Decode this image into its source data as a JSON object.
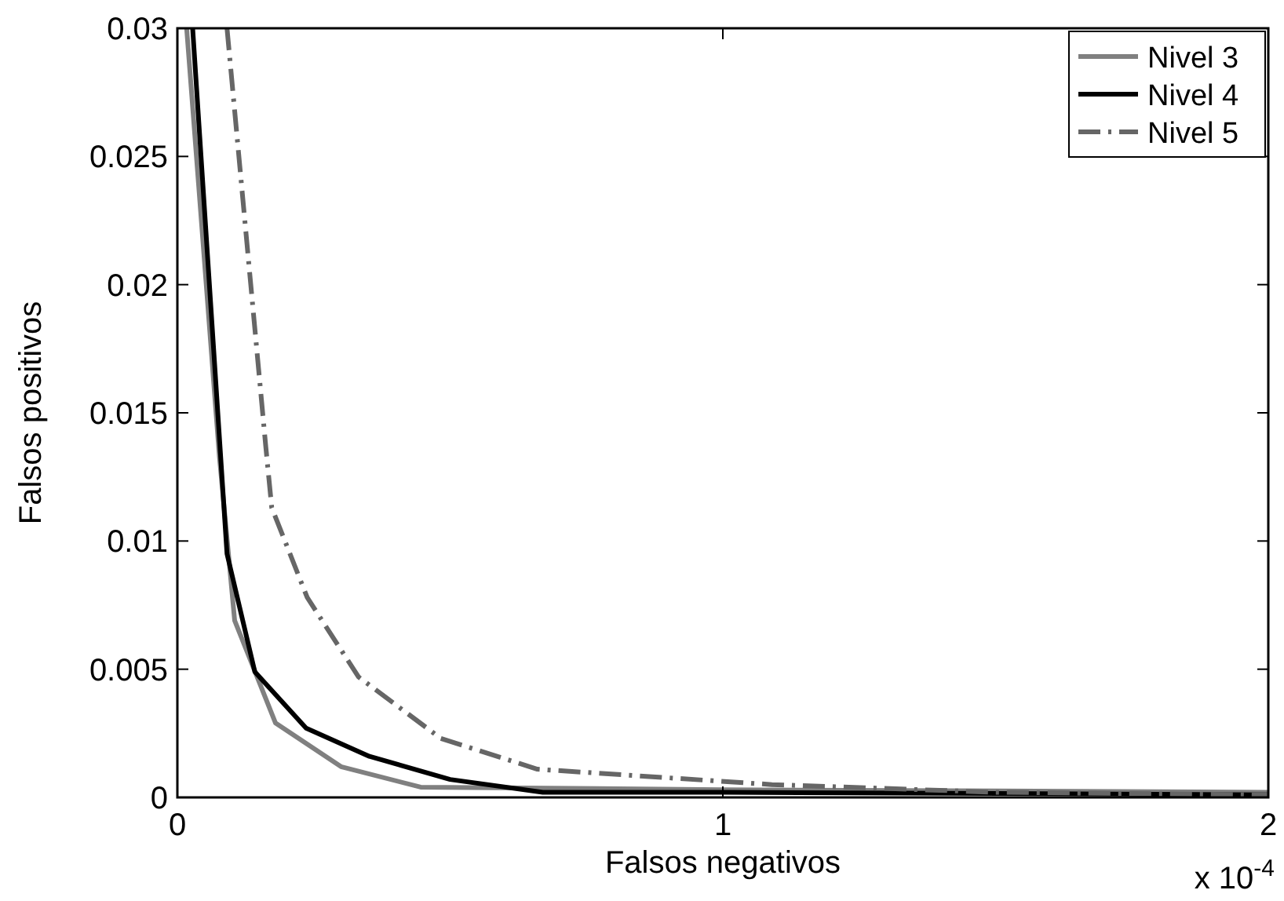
{
  "chart_data": {
    "type": "line",
    "xlabel": "Falsos negativos",
    "ylabel": "Falsos positivos",
    "xlim": [
      0,
      2
    ],
    "xticks": [
      0,
      1,
      2
    ],
    "ylim": [
      0,
      0.03
    ],
    "yticks": [
      0,
      0.005,
      0.01,
      0.015,
      0.02,
      0.025,
      0.03
    ],
    "annotations": [
      "x 10$^{-4}$"
    ],
    "legend": "top right",
    "grid": false,
    "marker": "none",
    "series": [
      {
        "name": "Nivel 3",
        "color": "#808080",
        "line_style": "solid",
        "x": [
          0.017,
          0.077,
          0.105,
          0.18,
          0.3,
          0.446,
          1.0,
          2.0
        ],
        "values": [
          0.03,
          0.0133,
          0.0069,
          0.0029,
          0.0012,
          0.0004,
          0.0003,
          0.0002
        ]
      },
      {
        "name": "Nivel 4",
        "color": "#000000",
        "line_style": "solid",
        "x": [
          0.028,
          0.091,
          0.142,
          0.236,
          0.352,
          0.5,
          0.67,
          1.0,
          2.0
        ],
        "values": [
          0.03,
          0.0095,
          0.0049,
          0.0027,
          0.0016,
          0.0007,
          0.0002,
          0.0002,
          0.0001
        ]
      },
      {
        "name": "Nivel 5",
        "color": "#666666",
        "line_style": "dashed",
        "x": [
          0.091,
          0.162,
          0.173,
          0.238,
          0.332,
          0.483,
          0.66,
          1.09,
          1.5,
          2.0
        ],
        "values": [
          0.03,
          0.0137,
          0.0113,
          0.0078,
          0.0047,
          0.0023,
          0.0011,
          0.0005,
          0.0002,
          0.0001
        ]
      }
    ]
  }
}
